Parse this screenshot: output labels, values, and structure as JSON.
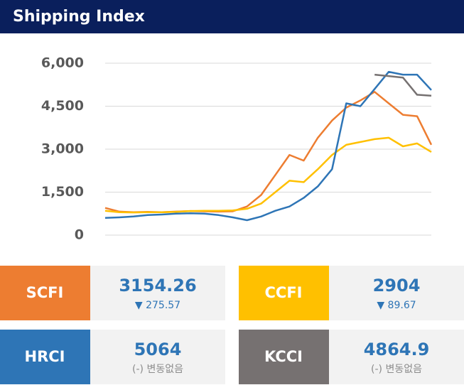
{
  "header": {
    "title": "Shipping Index"
  },
  "chart_data": {
    "type": "line",
    "ylim": [
      0,
      6000
    ],
    "yticks": [
      {
        "value": 0,
        "label": "0"
      },
      {
        "value": 1500,
        "label": "1,500"
      },
      {
        "value": 3000,
        "label": "3,000"
      },
      {
        "value": 4500,
        "label": "4,500"
      },
      {
        "value": 6000,
        "label": "6,000"
      }
    ],
    "grid": true,
    "series": [
      {
        "name": "SCFI",
        "color": "#ed7d31",
        "values": [
          950,
          820,
          800,
          810,
          800,
          820,
          840,
          830,
          820,
          830,
          1000,
          1400,
          2100,
          2800,
          2600,
          3400,
          4000,
          4450,
          4700,
          5000,
          4600,
          4200,
          4150,
          3154
        ]
      },
      {
        "name": "CCFI",
        "color": "#ffc000",
        "values": [
          850,
          800,
          790,
          800,
          800,
          810,
          840,
          850,
          850,
          860,
          920,
          1100,
          1500,
          1900,
          1850,
          2300,
          2800,
          3150,
          3250,
          3350,
          3400,
          3100,
          3200,
          2904
        ]
      },
      {
        "name": "HRCI",
        "color": "#2e75b6",
        "values": [
          600,
          620,
          650,
          700,
          720,
          750,
          760,
          750,
          700,
          620,
          520,
          650,
          850,
          1000,
          1300,
          1700,
          2300,
          4600,
          4500,
          5100,
          5700,
          5600,
          5600,
          5064
        ]
      },
      {
        "name": "KCCI",
        "color": "#767171",
        "values": [
          null,
          null,
          null,
          null,
          null,
          null,
          null,
          null,
          null,
          null,
          null,
          null,
          null,
          null,
          null,
          null,
          null,
          null,
          null,
          5600,
          5550,
          5500,
          4900,
          4865
        ]
      }
    ]
  },
  "cards": [
    {
      "name": "SCFI",
      "value": "3154.26",
      "change": "▼ 275.57"
    },
    {
      "name": "CCFI",
      "value": "2904",
      "change": "▼ 89.67"
    },
    {
      "name": "HRCI",
      "value": "5064",
      "change": "(-) 변동없음"
    },
    {
      "name": "KCCI",
      "value": "4864.9",
      "change": "(-) 변동없음"
    }
  ]
}
